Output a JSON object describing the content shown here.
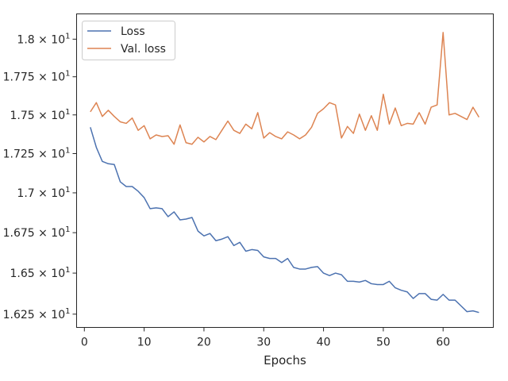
{
  "chart_data": {
    "type": "line",
    "title": "",
    "xlabel": "Epochs",
    "ylabel": "",
    "xlim": [
      -1.3,
      68.4
    ],
    "ylim": [
      16.17,
      18.17
    ],
    "xticks": [
      0,
      10,
      20,
      30,
      40,
      50,
      60
    ],
    "xtick_labels": [
      "0",
      "10",
      "20",
      "30",
      "40",
      "50",
      "60"
    ],
    "yticks": [
      16.25,
      16.5,
      16.75,
      17.0,
      17.25,
      17.5,
      17.75,
      18.0
    ],
    "ytick_labels": [
      {
        "mantissa": "1.625",
        "base": "10",
        "exp": "1"
      },
      {
        "mantissa": "1.65",
        "base": "10",
        "exp": "1"
      },
      {
        "mantissa": "1.675",
        "base": "10",
        "exp": "1"
      },
      {
        "mantissa": "1.7",
        "base": "10",
        "exp": "1"
      },
      {
        "mantissa": "1.725",
        "base": "10",
        "exp": "1"
      },
      {
        "mantissa": "1.75",
        "base": "10",
        "exp": "1"
      },
      {
        "mantissa": "1.775",
        "base": "10",
        "exp": "1"
      },
      {
        "mantissa": "1.8",
        "base": "10",
        "exp": "1"
      }
    ],
    "y_scale": "log",
    "grid": false,
    "legend_position": "top-left",
    "x": [
      1,
      2,
      3,
      4,
      5,
      6,
      7,
      8,
      9,
      10,
      11,
      12,
      13,
      14,
      15,
      16,
      17,
      18,
      19,
      20,
      21,
      22,
      23,
      24,
      25,
      26,
      27,
      28,
      29,
      30,
      31,
      32,
      33,
      34,
      35,
      36,
      37,
      38,
      39,
      40,
      41,
      42,
      43,
      44,
      45,
      46,
      47,
      48,
      49,
      50,
      51,
      52,
      53,
      54,
      55,
      56,
      57,
      58,
      59,
      60,
      61,
      62,
      63,
      64,
      65,
      66
    ],
    "series": [
      {
        "name": "Loss",
        "color": "#4c72b0",
        "values": [
          17.42,
          17.29,
          17.2,
          17.185,
          17.18,
          17.07,
          17.04,
          17.04,
          17.01,
          16.97,
          16.9,
          16.905,
          16.9,
          16.85,
          16.88,
          16.83,
          16.835,
          16.845,
          16.76,
          16.73,
          16.745,
          16.7,
          16.71,
          16.725,
          16.67,
          16.69,
          16.635,
          16.645,
          16.64,
          16.6,
          16.59,
          16.59,
          16.565,
          16.59,
          16.535,
          16.525,
          16.525,
          16.535,
          16.54,
          16.5,
          16.485,
          16.5,
          16.49,
          16.45,
          16.45,
          16.445,
          16.455,
          16.435,
          16.43,
          16.43,
          16.45,
          16.41,
          16.395,
          16.385,
          16.345,
          16.375,
          16.375,
          16.34,
          16.335,
          16.37,
          16.335,
          16.335,
          16.3,
          16.265,
          16.27,
          16.26
        ]
      },
      {
        "name": "Val. loss",
        "color": "#dd8452",
        "values": [
          17.52,
          17.58,
          17.49,
          17.53,
          17.49,
          17.455,
          17.445,
          17.48,
          17.4,
          17.43,
          17.345,
          17.37,
          17.36,
          17.365,
          17.31,
          17.435,
          17.32,
          17.31,
          17.355,
          17.325,
          17.36,
          17.34,
          17.4,
          17.46,
          17.4,
          17.38,
          17.44,
          17.41,
          17.515,
          17.35,
          17.385,
          17.36,
          17.345,
          17.39,
          17.37,
          17.345,
          17.37,
          17.42,
          17.51,
          17.54,
          17.58,
          17.565,
          17.35,
          17.425,
          17.38,
          17.505,
          17.4,
          17.495,
          17.4,
          17.635,
          17.44,
          17.545,
          17.43,
          17.445,
          17.44,
          17.515,
          17.44,
          17.55,
          17.565,
          18.045,
          17.5,
          17.51,
          17.49,
          17.47,
          17.55,
          17.485
        ]
      }
    ]
  }
}
